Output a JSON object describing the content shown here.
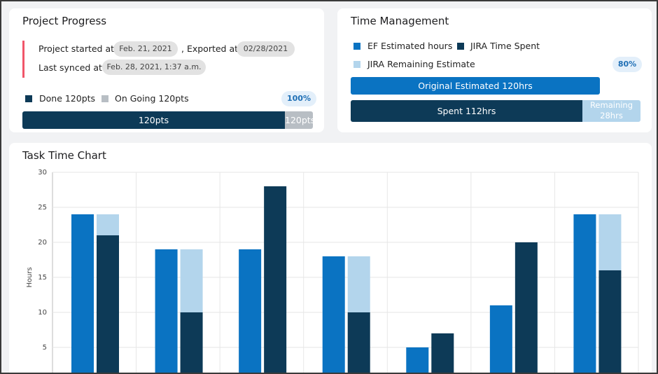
{
  "project_progress": {
    "title": "Project Progress",
    "started_label": "Project started at",
    "started_date": "Feb. 21, 2021",
    "exported_label": ", Exported at",
    "exported_date": "02/28/2021",
    "synced_label": "Last synced at",
    "synced_date": "Feb. 28, 2021, 1:37 a.m.",
    "legend": [
      "Done 120pts",
      "On Going 120pts"
    ],
    "badge": "100%",
    "bar_labels": [
      "120pts",
      "120pts"
    ]
  },
  "time_management": {
    "title": "Time Management",
    "badge": "80%",
    "original": "Original Estimated 120hrs",
    "spent": "Spent 112hrs",
    "remaining": [
      "Remaining",
      "28hrs"
    ]
  },
  "chart_data": {
    "type": "bar",
    "title": "Task Time Chart",
    "y_label": "Hours",
    "categories": [
      null,
      null,
      null,
      null,
      null,
      null,
      null
    ],
    "series": [
      {
        "name": "EF Estimated hours",
        "color": "#0a73c2",
        "values": [
          24,
          19,
          19,
          18,
          5,
          11,
          24
        ]
      },
      {
        "name": "JIRA Time Spent",
        "color": "#0d3a57",
        "values": [
          21,
          10,
          28,
          10,
          7,
          20,
          16
        ]
      },
      {
        "name": "JIRA Remaining Estimate",
        "color": "#b3d5ec",
        "values": [
          3,
          9,
          0,
          8,
          0,
          0,
          8
        ],
        "stacked": true
      }
    ],
    "ylim": [
      0,
      30
    ],
    "yticks": [
      5,
      10,
      15,
      20,
      25,
      30
    ],
    "grid": true
  }
}
